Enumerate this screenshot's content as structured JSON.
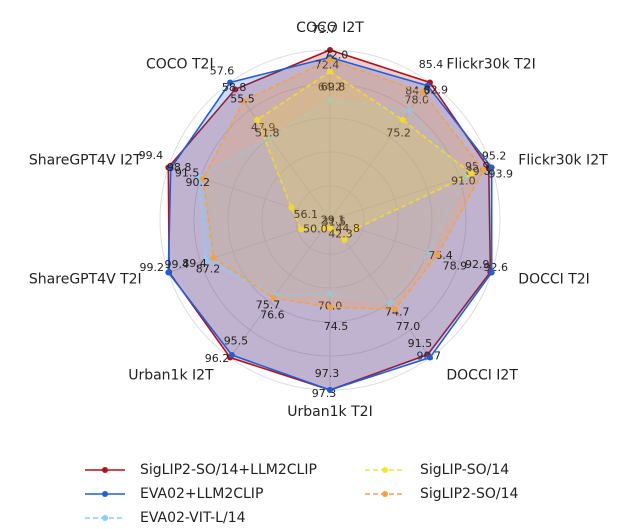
{
  "chart_data": {
    "type": "radar",
    "categories": [
      "COCO I2T",
      "Flickr30k T2I",
      "Flickr30k I2T",
      "DOCCI T2I",
      "DOCCI I2T",
      "Urban1k T2I",
      "Urban1k I2T",
      "ShareGPT4V T2I",
      "ShareGPT4V I2T",
      "COCO T2I"
    ],
    "series": [
      {
        "name": "SigLIP2-SO/14+LLM2CLIP",
        "color": "#b0121b",
        "linestyle": "solid",
        "values": [
          73.7,
          85.4,
          95.2,
          92.6,
          90.7,
          97.3,
          96.2,
          99.2,
          99.4,
          57.6
        ],
        "value_labels": [
          "73.7",
          "85.4",
          "95.2",
          "92.6",
          "90.7",
          "97.3",
          "96.2",
          "99.2",
          "99.4",
          "57.6"
        ]
      },
      {
        "name": "EVA02+LLM2CLIP",
        "color": "#1f5fd6",
        "linestyle": "solid",
        "values": [
          72.4,
          84.6,
          95.9,
          92.9,
          91.5,
          97.3,
          95.5,
          99.4,
          98.8,
          58.8
        ],
        "value_labels": [
          "72.4",
          "84.6",
          "95.9",
          "92.9",
          "91.5",
          "97.3",
          "95.5",
          "99.4",
          "98.8",
          "58.8"
        ]
      },
      {
        "name": "EVA02-VIT-L/14",
        "color": "#87cefa",
        "linestyle": "dashed",
        "values": [
          64.2,
          78.0,
          89.6,
          76.4,
          74.7,
          70.0,
          75.7,
          89.4,
          91.5,
          47.9
        ],
        "value_labels": [
          "64.2",
          "78.0",
          "89.6",
          "76.4",
          "74.7",
          "70.0",
          "75.7",
          "89.4",
          "91.5",
          "47.9"
        ]
      },
      {
        "name": "SigLIP-SO/14",
        "color": "#f2ea2a",
        "linestyle": "dashed",
        "values": [
          69.8,
          75.2,
          91.0,
          44.8,
          42.3,
          29.1,
          31.5,
          50.0,
          56.1,
          51.8
        ],
        "value_labels": [
          "69.8",
          "75.2",
          "91.0",
          "44.8",
          "42.3",
          "29.1",
          "31.5",
          "50.0",
          "56.1",
          "51.8"
        ]
      },
      {
        "name": "SigLIP2-SO/14",
        "color": "#f4a140",
        "linestyle": "dashed",
        "values": [
          72.0,
          82.9,
          93.9,
          78.9,
          77.0,
          74.5,
          76.6,
          87.2,
          90.2,
          55.5
        ],
        "value_labels": [
          "72.0",
          "82.9",
          "93.9",
          "78.9",
          "77.0",
          "74.5",
          "76.6",
          "87.2",
          "90.2",
          "55.5"
        ]
      }
    ]
  }
}
